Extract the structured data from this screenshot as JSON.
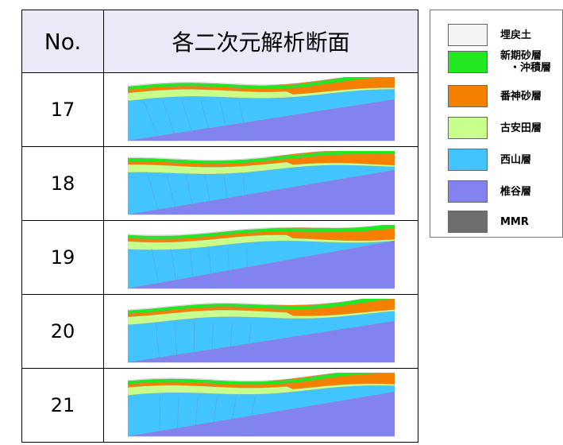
{
  "header": {
    "no": "No.",
    "section": "各二次元解析断面"
  },
  "rows": [
    {
      "no": 17
    },
    {
      "no": 18
    },
    {
      "no": 19
    },
    {
      "no": 20
    },
    {
      "no": 21
    }
  ],
  "legend": [
    {
      "lines": [
        "埋戻土"
      ],
      "color": "#f4f4f4"
    },
    {
      "lines": [
        "新期砂層",
        "・沖積層"
      ],
      "color": "#22e822"
    },
    {
      "lines": [
        "番神砂層"
      ],
      "color": "#f58000"
    },
    {
      "lines": [
        "古安田層"
      ],
      "color": "#c8ff8c"
    },
    {
      "lines": [
        "西山層"
      ],
      "color": "#42c4ff"
    },
    {
      "lines": [
        "椎谷層"
      ],
      "color": "#8282f0"
    },
    {
      "lines": [
        "MMR"
      ],
      "color": "#6e6e6e"
    }
  ]
}
